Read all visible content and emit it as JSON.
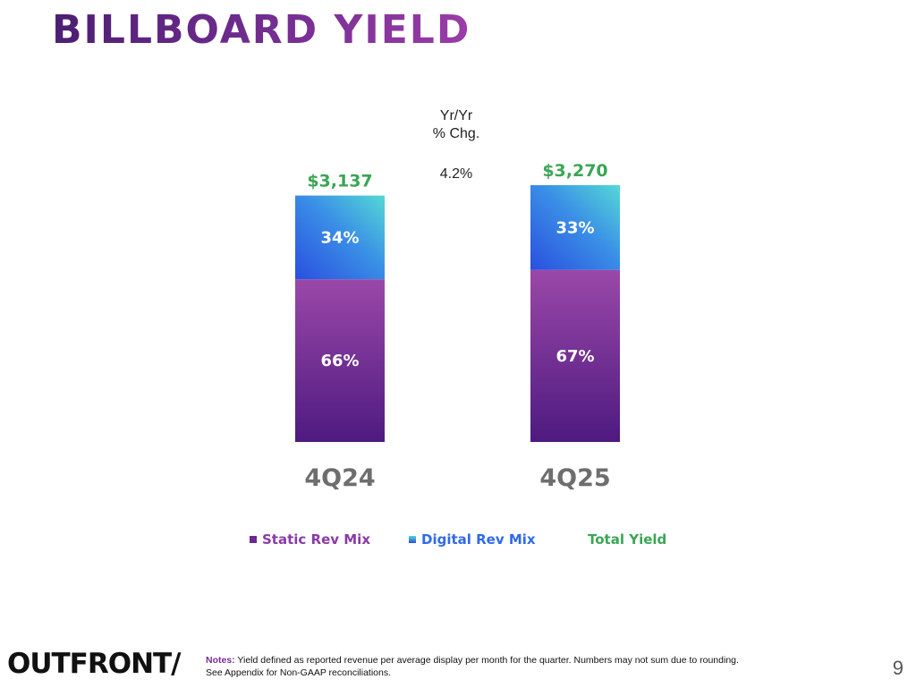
{
  "header": {
    "title": "BILLBOARD YIELD"
  },
  "yoy": {
    "heading_line1": "Yr/Yr",
    "heading_line2": "% Chg.",
    "value": "4.2%"
  },
  "chart_data": {
    "type": "bar",
    "stacked": true,
    "categories": [
      "4Q24",
      "4Q25"
    ],
    "series": [
      {
        "name": "Static Rev Mix",
        "values": [
          66,
          67
        ],
        "labels": [
          "66%",
          "67%"
        ],
        "color": "#6a2a95"
      },
      {
        "name": "Digital Rev Mix",
        "values": [
          34,
          33
        ],
        "labels": [
          "34%",
          "33%"
        ],
        "color": "#2f6ae8"
      }
    ],
    "totals": {
      "name": "Total Yield",
      "values": [
        3137,
        3270
      ],
      "labels": [
        "$3,137",
        "$3,270"
      ],
      "color": "#3aa655"
    },
    "legend_position": "bottom"
  },
  "legend": {
    "static_label": "Static Rev Mix",
    "digital_label": "Digital Rev Mix",
    "total_label": "Total Yield",
    "static_color": "#8a3aa8",
    "digital_color": "#2f6ae8",
    "total_color": "#3aa655"
  },
  "footer": {
    "logo": "OUTFRONT/",
    "notes_label": "Notes:",
    "notes_text": " Yield defined as reported revenue per average display per month for the quarter. Numbers may not sum due to rounding.",
    "notes_line2": "See Appendix for Non-GAAP reconciliations.",
    "page_number": "9"
  }
}
